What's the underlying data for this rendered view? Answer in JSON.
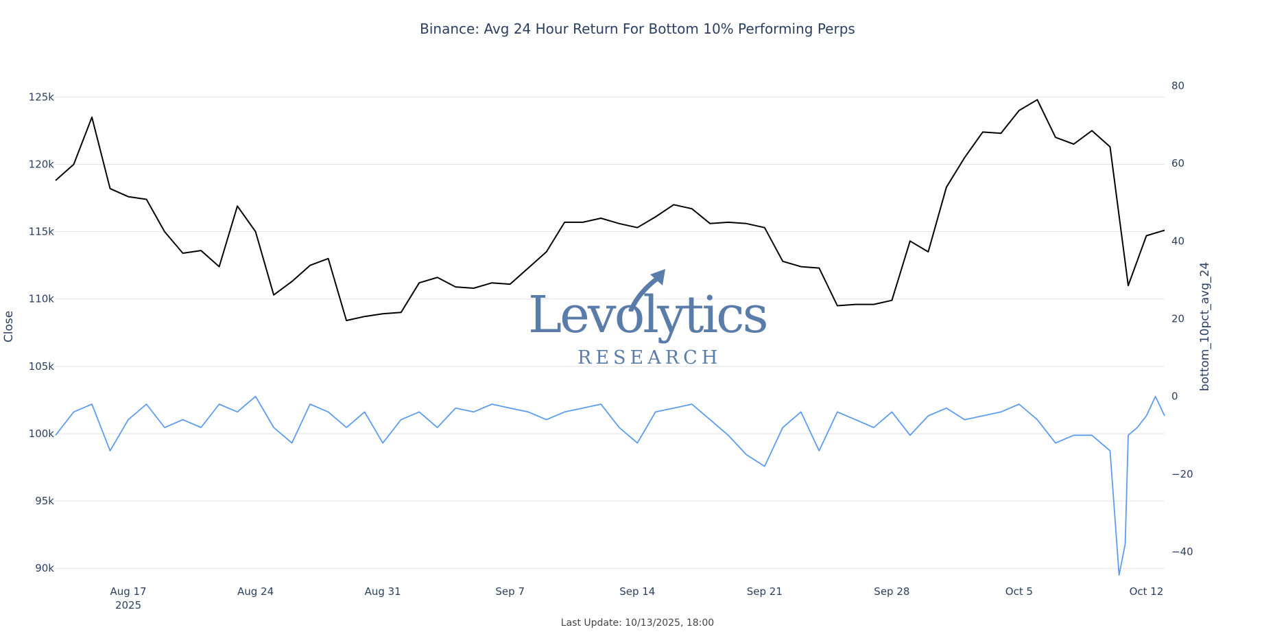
{
  "chart_data": {
    "type": "line",
    "title": "Binance: Avg 24 Hour Return For Bottom 10% Performing Perps",
    "footer": "Last Update: 10/13/2025, 18:00",
    "x_range": [
      "2025-08-13",
      "2025-10-13"
    ],
    "x_ticks": [
      {
        "date": "2025-08-17",
        "label": "Aug 17",
        "sub": "2025"
      },
      {
        "date": "2025-08-24",
        "label": "Aug 24",
        "sub": ""
      },
      {
        "date": "2025-08-31",
        "label": "Aug 31",
        "sub": ""
      },
      {
        "date": "2025-09-07",
        "label": "Sep 7",
        "sub": ""
      },
      {
        "date": "2025-09-14",
        "label": "Sep 14",
        "sub": ""
      },
      {
        "date": "2025-09-21",
        "label": "Sep 21",
        "sub": ""
      },
      {
        "date": "2025-09-28",
        "label": "Sep 28",
        "sub": ""
      },
      {
        "date": "2025-10-05",
        "label": "Oct 5",
        "sub": ""
      },
      {
        "date": "2025-10-12",
        "label": "Oct 12",
        "sub": ""
      }
    ],
    "y_left": {
      "label": "Close",
      "range": [
        89500,
        126700
      ],
      "ticks": [
        90000,
        95000,
        100000,
        105000,
        110000,
        115000,
        120000,
        125000
      ],
      "tick_labels": [
        "90k",
        "95k",
        "100k",
        "105k",
        "110k",
        "115k",
        "120k",
        "125k"
      ],
      "grid": true
    },
    "y_right": {
      "label": "bottom_10pct_avg_24",
      "range": [
        -46,
        83
      ],
      "ticks": [
        -40,
        -20,
        0,
        20,
        40,
        60,
        80
      ],
      "tick_labels": [
        "−40",
        "−20",
        "0",
        "20",
        "40",
        "60",
        "80"
      ]
    },
    "series": [
      {
        "axis": "left",
        "color": "#000000",
        "x": [
          "2025-08-13",
          "2025-08-14",
          "2025-08-15",
          "2025-08-16",
          "2025-08-17",
          "2025-08-18",
          "2025-08-19",
          "2025-08-20",
          "2025-08-21",
          "2025-08-22",
          "2025-08-23",
          "2025-08-24",
          "2025-08-25",
          "2025-08-26",
          "2025-08-27",
          "2025-08-28",
          "2025-08-29",
          "2025-08-30",
          "2025-08-31",
          "2025-09-01",
          "2025-09-02",
          "2025-09-03",
          "2025-09-04",
          "2025-09-05",
          "2025-09-06",
          "2025-09-07",
          "2025-09-08",
          "2025-09-09",
          "2025-09-10",
          "2025-09-11",
          "2025-09-12",
          "2025-09-13",
          "2025-09-14",
          "2025-09-15",
          "2025-09-16",
          "2025-09-17",
          "2025-09-18",
          "2025-09-19",
          "2025-09-20",
          "2025-09-21",
          "2025-09-22",
          "2025-09-23",
          "2025-09-24",
          "2025-09-25",
          "2025-09-26",
          "2025-09-27",
          "2025-09-28",
          "2025-09-29",
          "2025-09-30",
          "2025-10-01",
          "2025-10-02",
          "2025-10-03",
          "2025-10-04",
          "2025-10-05",
          "2025-10-06",
          "2025-10-07",
          "2025-10-08",
          "2025-10-09",
          "2025-10-10",
          "2025-10-11",
          "2025-10-12",
          "2025-10-13"
        ],
        "y": [
          118800,
          120000,
          123500,
          118200,
          117600,
          117400,
          115000,
          113400,
          113600,
          112400,
          116900,
          115000,
          110300,
          111300,
          112500,
          113000,
          108400,
          108700,
          108900,
          109000,
          111200,
          111600,
          110900,
          110800,
          111200,
          111100,
          112300,
          113500,
          115700,
          115700,
          116000,
          115600,
          115300,
          116100,
          117000,
          116700,
          115600,
          115700,
          115600,
          115300,
          112800,
          112400,
          112300,
          109500,
          109600,
          109600,
          109900,
          114300,
          113500,
          118300,
          120500,
          122400,
          122300,
          124000,
          124800,
          122000,
          121500,
          122500,
          121300,
          111000,
          114700,
          115100
        ]
      },
      {
        "axis": "right",
        "color": "#5b9cef",
        "x": [
          "2025-08-13",
          "2025-08-14",
          "2025-08-15",
          "2025-08-16",
          "2025-08-17",
          "2025-08-18",
          "2025-08-19",
          "2025-08-20",
          "2025-08-21",
          "2025-08-22",
          "2025-08-23",
          "2025-08-24",
          "2025-08-25",
          "2025-08-26",
          "2025-08-27",
          "2025-08-28",
          "2025-08-29",
          "2025-08-30",
          "2025-08-31",
          "2025-09-01",
          "2025-09-02",
          "2025-09-03",
          "2025-09-04",
          "2025-09-05",
          "2025-09-06",
          "2025-09-07",
          "2025-09-08",
          "2025-09-09",
          "2025-09-10",
          "2025-09-11",
          "2025-09-12",
          "2025-09-13",
          "2025-09-14",
          "2025-09-15",
          "2025-09-16",
          "2025-09-17",
          "2025-09-18",
          "2025-09-19",
          "2025-09-20",
          "2025-09-21",
          "2025-09-22",
          "2025-09-23",
          "2025-09-24",
          "2025-09-25",
          "2025-09-26",
          "2025-09-27",
          "2025-09-28",
          "2025-09-29",
          "2025-09-30",
          "2025-10-01",
          "2025-10-02",
          "2025-10-03",
          "2025-10-04",
          "2025-10-05",
          "2025-10-06",
          "2025-10-07",
          "2025-10-08",
          "2025-10-09",
          "2025-10-10",
          "2025-10-10T12",
          "2025-10-10T20",
          "2025-10-11",
          "2025-10-11T12",
          "2025-10-12",
          "2025-10-12T12",
          "2025-10-13"
        ],
        "y": [
          -10,
          -4,
          -2,
          -14,
          -6,
          -2,
          -8,
          -6,
          -8,
          -2,
          -4,
          0,
          -8,
          -12,
          -2,
          -4,
          -8,
          -4,
          -12,
          -6,
          -4,
          -8,
          -3,
          -4,
          -2,
          -3,
          -4,
          -6,
          -4,
          -3,
          -2,
          -8,
          -12,
          -4,
          -3,
          -2,
          -6,
          -10,
          -15,
          -18,
          -8,
          -4,
          -14,
          -4,
          -6,
          -8,
          -4,
          -10,
          -5,
          -3,
          -6,
          -5,
          -4,
          -2,
          -6,
          -12,
          -10,
          -10,
          -14,
          -46,
          -38,
          -10,
          -8,
          -5,
          0,
          -5
        ]
      }
    ]
  },
  "watermark": {
    "brand": "Levolytics",
    "sub": "RESEARCH"
  }
}
